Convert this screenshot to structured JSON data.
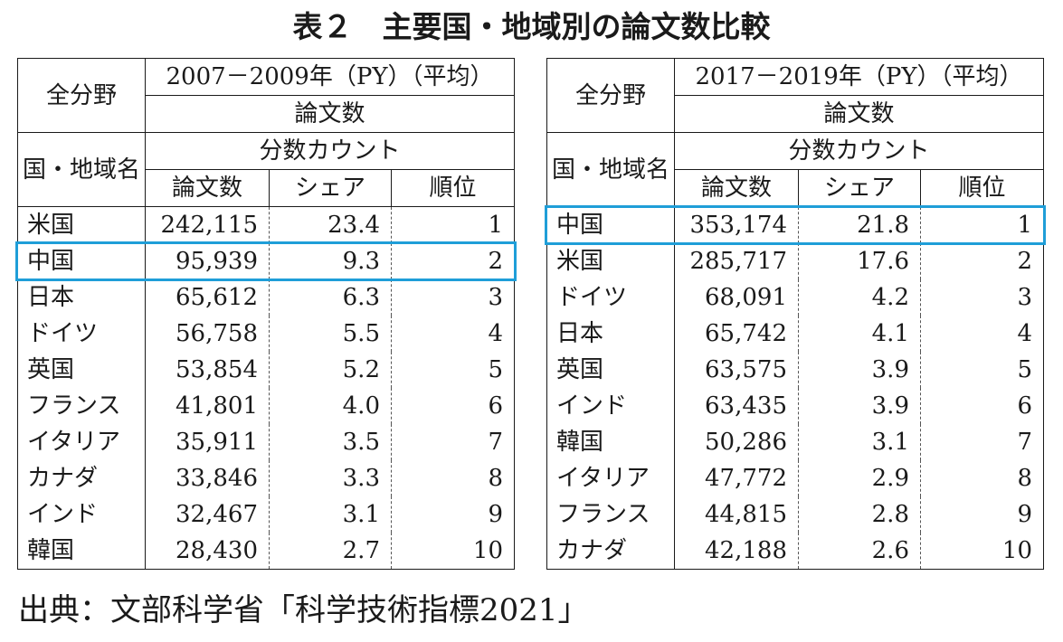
{
  "title": "表２　主要国・地域別の論文数比較",
  "source": "出典：文部科学省「科学技術指標2021」",
  "accent_color": "#1f9ed8",
  "tables": [
    {
      "corner_top": "全分野",
      "corner_bottom": "国・地域名",
      "period": "2007－2009年（PY）（平均）",
      "metric": "論文数",
      "count_type": "分数カウント",
      "columns": [
        "論文数",
        "シェア",
        "順位"
      ],
      "highlight_country": "中国",
      "rows": [
        {
          "country": "米国",
          "papers": "242,115",
          "share": "23.4",
          "rank": "1"
        },
        {
          "country": "中国",
          "papers": "95,939",
          "share": "9.3",
          "rank": "2"
        },
        {
          "country": "日本",
          "papers": "65,612",
          "share": "6.3",
          "rank": "3"
        },
        {
          "country": "ドイツ",
          "papers": "56,758",
          "share": "5.5",
          "rank": "4"
        },
        {
          "country": "英国",
          "papers": "53,854",
          "share": "5.2",
          "rank": "5"
        },
        {
          "country": "フランス",
          "papers": "41,801",
          "share": "4.0",
          "rank": "6"
        },
        {
          "country": "イタリア",
          "papers": "35,911",
          "share": "3.5",
          "rank": "7"
        },
        {
          "country": "カナダ",
          "papers": "33,846",
          "share": "3.3",
          "rank": "8"
        },
        {
          "country": "インド",
          "papers": "32,467",
          "share": "3.1",
          "rank": "9"
        },
        {
          "country": "韓国",
          "papers": "28,430",
          "share": "2.7",
          "rank": "10"
        }
      ]
    },
    {
      "corner_top": "全分野",
      "corner_bottom": "国・地域名",
      "period": "2017－2019年（PY）（平均）",
      "metric": "論文数",
      "count_type": "分数カウント",
      "columns": [
        "論文数",
        "シェア",
        "順位"
      ],
      "highlight_country": "中国",
      "rows": [
        {
          "country": "中国",
          "papers": "353,174",
          "share": "21.8",
          "rank": "1"
        },
        {
          "country": "米国",
          "papers": "285,717",
          "share": "17.6",
          "rank": "2"
        },
        {
          "country": "ドイツ",
          "papers": "68,091",
          "share": "4.2",
          "rank": "3"
        },
        {
          "country": "日本",
          "papers": "65,742",
          "share": "4.1",
          "rank": "4"
        },
        {
          "country": "英国",
          "papers": "63,575",
          "share": "3.9",
          "rank": "5"
        },
        {
          "country": "インド",
          "papers": "63,435",
          "share": "3.9",
          "rank": "6"
        },
        {
          "country": "韓国",
          "papers": "50,286",
          "share": "3.1",
          "rank": "7"
        },
        {
          "country": "イタリア",
          "papers": "47,772",
          "share": "2.9",
          "rank": "8"
        },
        {
          "country": "フランス",
          "papers": "44,815",
          "share": "2.8",
          "rank": "9"
        },
        {
          "country": "カナダ",
          "papers": "42,188",
          "share": "2.6",
          "rank": "10"
        }
      ]
    }
  ]
}
